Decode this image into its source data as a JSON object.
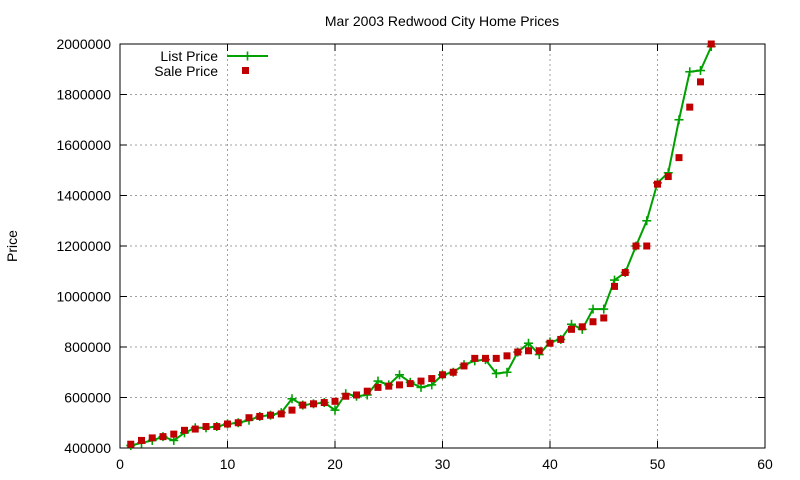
{
  "chart_data": {
    "type": "line",
    "title": "Mar 2003 Redwood City Home Prices",
    "xlabel": "",
    "ylabel": "Price",
    "xlim": [
      0,
      60
    ],
    "ylim": [
      400000,
      2000000
    ],
    "xticks": [
      0,
      10,
      20,
      30,
      40,
      50,
      60
    ],
    "yticks": [
      400000,
      600000,
      800000,
      1000000,
      1200000,
      1400000,
      1600000,
      1800000,
      2000000
    ],
    "xtick_labels": [
      "0",
      "10",
      "20",
      "30",
      "40",
      "50",
      "60"
    ],
    "ytick_labels": [
      "400000",
      "600000",
      "800000",
      "1000000",
      "1200000",
      "1400000",
      "1600000",
      "1800000",
      "2000000"
    ],
    "grid": true,
    "legend_position": "top-left",
    "series": [
      {
        "name": "List Price",
        "style": "line-points",
        "color": "#00a000",
        "x": [
          1,
          2,
          3,
          4,
          5,
          6,
          7,
          8,
          9,
          10,
          11,
          12,
          13,
          14,
          15,
          16,
          17,
          18,
          19,
          20,
          21,
          22,
          23,
          24,
          25,
          26,
          27,
          28,
          29,
          30,
          31,
          32,
          33,
          34,
          35,
          36,
          37,
          38,
          39,
          40,
          41,
          42,
          43,
          44,
          45,
          46,
          47,
          48,
          49,
          50,
          51,
          52,
          53,
          54,
          55
        ],
        "y": [
          410000,
          420000,
          430000,
          445000,
          430000,
          460000,
          480000,
          480000,
          485000,
          495000,
          500000,
          510000,
          525000,
          530000,
          540000,
          595000,
          570000,
          575000,
          580000,
          550000,
          615000,
          605000,
          610000,
          665000,
          650000,
          690000,
          660000,
          640000,
          650000,
          690000,
          700000,
          730000,
          745000,
          750000,
          695000,
          700000,
          780000,
          815000,
          770000,
          820000,
          830000,
          890000,
          870000,
          950000,
          950000,
          1065000,
          1095000,
          1200000,
          1300000,
          1450000,
          1490000,
          1700000,
          1890000,
          1895000,
          1990000
        ]
      },
      {
        "name": "Sale Price",
        "style": "points",
        "color": "#c00000",
        "x": [
          1,
          2,
          3,
          4,
          5,
          6,
          7,
          8,
          9,
          10,
          11,
          12,
          13,
          14,
          15,
          16,
          17,
          18,
          19,
          20,
          21,
          22,
          23,
          24,
          25,
          26,
          27,
          28,
          29,
          30,
          31,
          32,
          33,
          34,
          35,
          36,
          37,
          38,
          39,
          40,
          41,
          42,
          43,
          44,
          45,
          46,
          47,
          48,
          49,
          50,
          51,
          52,
          53,
          54,
          55
        ],
        "y": [
          415000,
          430000,
          440000,
          445000,
          455000,
          470000,
          475000,
          485000,
          485000,
          495000,
          500000,
          520000,
          525000,
          530000,
          535000,
          550000,
          570000,
          575000,
          580000,
          585000,
          605000,
          610000,
          625000,
          640000,
          645000,
          650000,
          655000,
          665000,
          675000,
          690000,
          700000,
          725000,
          755000,
          755000,
          755000,
          765000,
          780000,
          785000,
          785000,
          815000,
          830000,
          870000,
          880000,
          900000,
          915000,
          1040000,
          1095000,
          1200000,
          1200000,
          1445000,
          1475000,
          1550000,
          1750000,
          1850000,
          2000000
        ]
      }
    ]
  }
}
